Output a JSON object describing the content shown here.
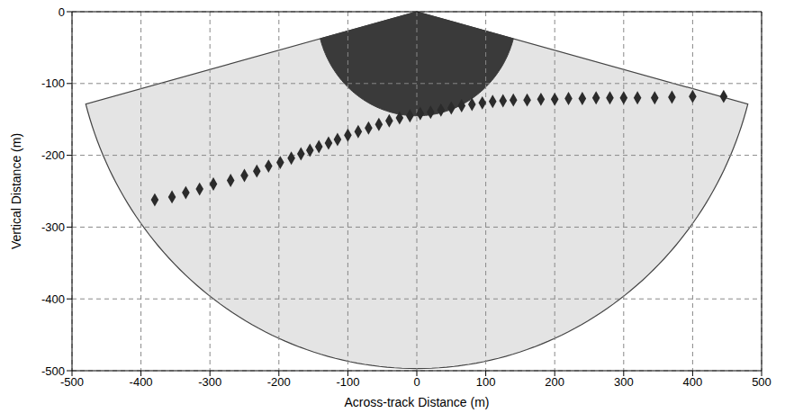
{
  "chart_data": {
    "type": "scatter",
    "x_label": "Across-track Distance (m)",
    "y_label": "Vertical Distance (m)",
    "xlim": [
      -500,
      500
    ],
    "ylim": [
      -500,
      0
    ],
    "xticks": [
      -500,
      -400,
      -300,
      -200,
      -100,
      0,
      100,
      200,
      300,
      400,
      500
    ],
    "yticks": [
      -500,
      -400,
      -300,
      -200,
      -100,
      0
    ],
    "grid": true,
    "marker": "diamond",
    "color": "#2b2b2b",
    "x": [
      -380,
      -355,
      -335,
      -315,
      -295,
      -270,
      -250,
      -232,
      -215,
      -198,
      -182,
      -168,
      -155,
      -142,
      -128,
      -115,
      -100,
      -85,
      -70,
      -55,
      -40,
      -25,
      -10,
      5,
      20,
      35,
      50,
      65,
      80,
      95,
      110,
      125,
      140,
      160,
      180,
      200,
      220,
      240,
      260,
      280,
      300,
      320,
      345,
      370,
      400,
      445
    ],
    "values": [
      -262,
      -258,
      -252,
      -247,
      -240,
      -235,
      -228,
      -222,
      -215,
      -210,
      -204,
      -198,
      -193,
      -188,
      -183,
      -178,
      -172,
      -167,
      -162,
      -157,
      -152,
      -148,
      -145,
      -142,
      -140,
      -137,
      -134,
      -131,
      -129,
      -127,
      -125,
      -124,
      -123,
      -123,
      -122,
      -122,
      -121,
      -121,
      -120,
      -120,
      -120,
      -120,
      -120,
      -119,
      -118,
      -118
    ],
    "swath": {
      "radius": 497,
      "half_angle": 75,
      "inner_radius": 145
    }
  }
}
